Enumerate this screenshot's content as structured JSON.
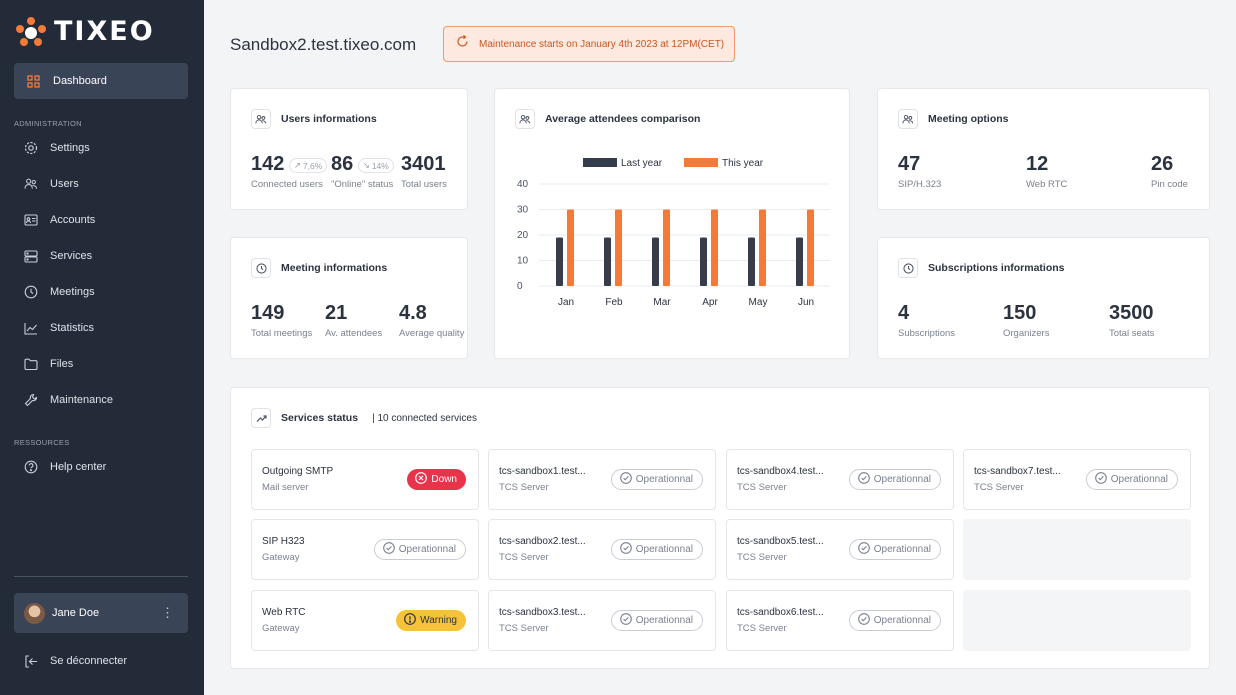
{
  "brand": {
    "name": "TIXEO",
    "accent": "#f47a3a"
  },
  "sidebar": {
    "active": {
      "label": "Dashboard",
      "icon": "grid-icon"
    },
    "section_admin": "ADMINISTRATION",
    "items": [
      {
        "label": "Settings",
        "icon": "gear-icon"
      },
      {
        "label": "Users",
        "icon": "users-icon"
      },
      {
        "label": "Accounts",
        "icon": "id-card-icon"
      },
      {
        "label": "Services",
        "icon": "server-icon"
      },
      {
        "label": "Meetings",
        "icon": "clock-icon"
      },
      {
        "label": "Statistics",
        "icon": "chart-line-icon"
      },
      {
        "label": "Files",
        "icon": "folder-icon"
      },
      {
        "label": "Maintenance",
        "icon": "wrench-icon"
      }
    ],
    "section_resources": "RESSOURCES",
    "help": {
      "label": "Help center",
      "icon": "question-icon"
    },
    "user": {
      "name": "Jane Doe"
    },
    "logout": "Se déconnecter"
  },
  "header": {
    "title": "Sandbox2.test.tixeo.com",
    "maintenance": "Maintenance starts on January 4th 2023 at 12PM(CET)"
  },
  "users_card": {
    "title": "Users informations",
    "connected": {
      "value": "142",
      "trend": "7,6%",
      "label": "Connected users"
    },
    "online": {
      "value": "86",
      "trend": "14%",
      "label": "\"Online\" status"
    },
    "total": {
      "value": "3401",
      "label": "Total users"
    }
  },
  "meeting_card": {
    "title": "Meeting informations",
    "stats": [
      {
        "value": "149",
        "label": "Total meetings"
      },
      {
        "value": "21",
        "label": "Av. attendees"
      },
      {
        "value": "4.8",
        "label": "Average quality"
      }
    ]
  },
  "options_card": {
    "title": "Meeting options",
    "stats": [
      {
        "value": "47",
        "label": "SIP/H.323"
      },
      {
        "value": "12",
        "label": "Web RTC"
      },
      {
        "value": "26",
        "label": "Pin code"
      }
    ]
  },
  "subs_card": {
    "title": "Subscriptions informations",
    "stats": [
      {
        "value": "4",
        "label": "Subscriptions"
      },
      {
        "value": "150",
        "label": "Organizers"
      },
      {
        "value": "3500",
        "label": "Total seats"
      }
    ]
  },
  "chart_card": {
    "title": "Average attendees comparison"
  },
  "chart_data": {
    "type": "bar",
    "categories": [
      "Jan",
      "Feb",
      "Mar",
      "Apr",
      "May",
      "Jun"
    ],
    "series": [
      {
        "name": "Last year",
        "values": [
          19,
          19,
          19,
          19,
          19,
          19
        ],
        "color": "#353d4d"
      },
      {
        "name": "This year",
        "values": [
          30,
          30,
          30,
          30,
          30,
          30
        ],
        "color": "#f47a3a"
      }
    ],
    "ylim": [
      0,
      40
    ],
    "yticks": [
      "0",
      "10",
      "20",
      "30",
      "40"
    ],
    "legend": "top-center",
    "grid": true
  },
  "services": {
    "title": "Services status",
    "count": "| 10 connected services",
    "items": [
      {
        "name": "Outgoing SMTP",
        "type": "Mail server",
        "status": "Down",
        "kind": "down"
      },
      {
        "name": "tcs-sandbox1.test...",
        "type": "TCS Server",
        "status": "Operationnal",
        "kind": "ok"
      },
      {
        "name": "tcs-sandbox4.test...",
        "type": "TCS Server",
        "status": "Operationnal",
        "kind": "ok"
      },
      {
        "name": "tcs-sandbox7.test...",
        "type": "TCS Server",
        "status": "Operationnal",
        "kind": "ok"
      },
      {
        "name": "SIP H323",
        "type": "Gateway",
        "status": "Operationnal",
        "kind": "ok"
      },
      {
        "name": "tcs-sandbox2.test...",
        "type": "TCS Server",
        "status": "Operationnal",
        "kind": "ok"
      },
      {
        "name": "tcs-sandbox5.test...",
        "type": "TCS Server",
        "status": "Operationnal",
        "kind": "ok"
      },
      {
        "name": "Web RTC",
        "type": "Gateway",
        "status": "Warning",
        "kind": "warn"
      },
      {
        "name": "tcs-sandbox3.test...",
        "type": "TCS Server",
        "status": "Operationnal",
        "kind": "ok"
      },
      {
        "name": "tcs-sandbox6.test...",
        "type": "TCS Server",
        "status": "Operationnal",
        "kind": "ok"
      }
    ]
  }
}
